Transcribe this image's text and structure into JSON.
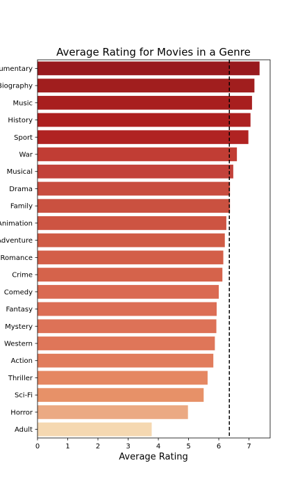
{
  "chart_data": {
    "type": "bar",
    "orientation": "horizontal",
    "title": "Average Rating for Movies in a Genre",
    "xlabel": "Average Rating",
    "ylabel": "",
    "xlim": [
      0,
      7.7
    ],
    "xticks": [
      0,
      1,
      2,
      3,
      4,
      5,
      6,
      7
    ],
    "categories": [
      "Documentary",
      "Biography",
      "Music",
      "History",
      "Sport",
      "War",
      "Musical",
      "Drama",
      "Family",
      "Animation",
      "Adventure",
      "Romance",
      "Crime",
      "Comedy",
      "Fantasy",
      "Mystery",
      "Western",
      "Action",
      "Thriller",
      "Sci-Fi",
      "Horror",
      "Adult"
    ],
    "values": [
      7.35,
      7.18,
      7.1,
      7.05,
      6.98,
      6.6,
      6.48,
      6.37,
      6.37,
      6.25,
      6.2,
      6.15,
      6.12,
      6.0,
      5.93,
      5.92,
      5.87,
      5.82,
      5.63,
      5.5,
      4.98,
      3.78
    ],
    "colors": [
      "#981a1e",
      "#a11e1e",
      "#a81f1f",
      "#ad2020",
      "#b02322",
      "#c13d34",
      "#c3423a",
      "#c84d3f",
      "#ca5140",
      "#cd5442",
      "#d05b45",
      "#d35f48",
      "#d5634b",
      "#da6a52",
      "#dc6e55",
      "#dd7257",
      "#df7659",
      "#e17c5c",
      "#e58762",
      "#e79168",
      "#eba983",
      "#f5d8b1"
    ],
    "reference_line": {
      "value": 6.35,
      "style": "dashed",
      "color": "#000000"
    },
    "grid": false,
    "legend": "none"
  }
}
